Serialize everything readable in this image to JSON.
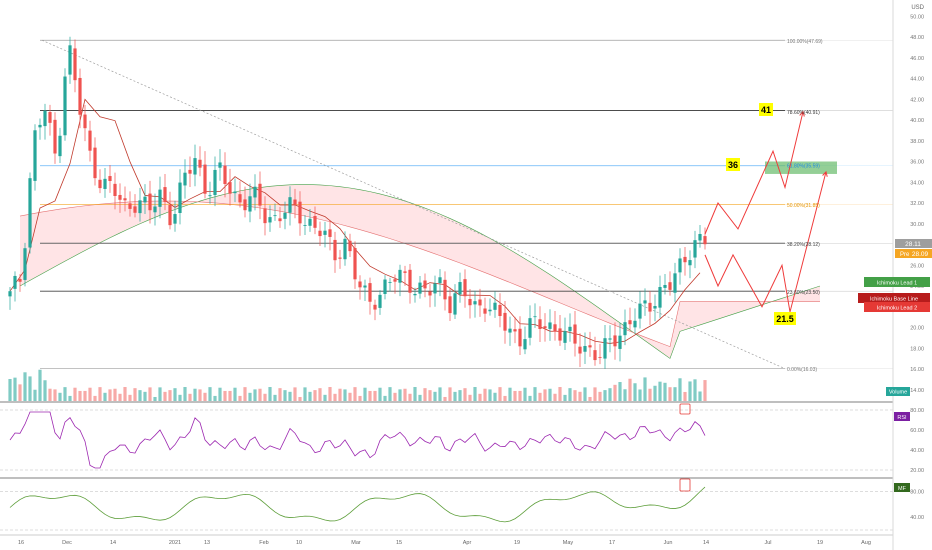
{
  "colors": {
    "up": "#26a69a",
    "down": "#ef5350",
    "volume_up": "#80cbc4",
    "volume_down": "#f7a9a7",
    "base_line": "#c0392b",
    "lead1": "#43a047",
    "lead2": "#e57373",
    "cloud_bull": "#c8e6c9",
    "cloud_bear": "#ffcdd2",
    "rsi": "#9c27b0",
    "mf": "#5d9e3a",
    "arrow": "#ef3b3b",
    "fib_blue": "#64b5f6",
    "fib_orange": "#f5a623",
    "highlight": "#ffff00"
  },
  "y_axis": {
    "currency": "USD",
    "ticks": [
      "50.00",
      "48.00",
      "46.00",
      "44.00",
      "42.00",
      "40.00",
      "38.00",
      "36.00",
      "34.00",
      "32.00",
      "30.00",
      "28.00",
      "26.00",
      "24.00",
      "22.00",
      "20.00",
      "18.00",
      "16.00",
      "14.00"
    ],
    "price_tag": "28.11",
    "pre_tag": "Pre",
    "pre_value": "28.09",
    "indicator_tags": [
      "Ichimoku Lead 1",
      "Ichimoku Base Line",
      "Ichimoku Lead 2",
      "Volume",
      "RSI",
      "MF"
    ],
    "rsi_ticks": [
      "80.00",
      "60.00",
      "40.00",
      "20.00"
    ],
    "mf_ticks": [
      "80.00",
      "40.00"
    ]
  },
  "x_axis": {
    "labels": [
      "16",
      "Dec",
      "14",
      "2021",
      "13",
      "Feb",
      "10",
      "Mar",
      "15",
      "Apr",
      "19",
      "May",
      "17",
      "Jun",
      "14",
      "Jul",
      "19",
      "Aug"
    ]
  },
  "fib_labels": [
    "100.00%(47.69)",
    "78.60%(40.91)",
    "61.80%(35.59)",
    "50.00%(31.85)",
    "38.20%(28.12)",
    "23.60%(23.50)",
    "0.00%(16.03)"
  ],
  "annotations": {
    "target_41": "41",
    "target_36": "36",
    "support_21_5": "21.5"
  },
  "chart_data": {
    "type": "candlestick",
    "x_labels": [
      "16",
      "Dec",
      "14",
      "2021",
      "13",
      "Feb",
      "10",
      "Mar",
      "15",
      "Apr",
      "19",
      "May",
      "17",
      "Jun",
      "14",
      "Jul",
      "19",
      "Aug"
    ],
    "price_range": [
      13,
      51
    ],
    "last_close": 28.11,
    "premarket": 28.09,
    "approx_close_path": [
      23.0,
      25.0,
      38.0,
      41.0,
      36.0,
      47.7,
      41.0,
      36.0,
      34.0,
      33.0,
      31.5,
      32.5,
      31.0,
      33.0,
      30.5,
      34.0,
      36.5,
      33.0,
      35.0,
      33.5,
      32.0,
      32.5,
      31.0,
      30.5,
      31.5,
      31.0,
      30.0,
      29.0,
      27.0,
      28.5,
      24.0,
      22.5,
      23.5,
      24.5,
      25.0,
      24.0,
      23.0,
      24.5,
      22.5,
      23.5,
      22.0,
      22.5,
      21.0,
      20.0,
      19.0,
      20.0,
      20.5,
      20.0,
      19.0,
      18.5,
      18.0,
      17.0,
      19.0,
      20.0,
      21.0,
      22.0,
      23.5,
      24.0,
      26.0,
      28.5,
      28.11
    ],
    "fibonacci": [
      {
        "level": "100.00%",
        "value": 47.69
      },
      {
        "level": "78.60%",
        "value": 40.91
      },
      {
        "level": "61.80%",
        "value": 35.59
      },
      {
        "level": "50.00%",
        "value": 31.85
      },
      {
        "level": "38.20%",
        "value": 28.12
      },
      {
        "level": "23.60%",
        "value": 23.5
      },
      {
        "level": "0.00%",
        "value": 16.03
      }
    ],
    "targets": [
      41,
      36,
      21.5
    ],
    "indicators": [
      "Ichimoku Lead 1",
      "Ichimoku Base Line",
      "Ichimoku Lead 2",
      "Volume",
      "RSI",
      "MF"
    ],
    "rsi_range": [
      20,
      80
    ],
    "mf_range": [
      20,
      90
    ]
  }
}
